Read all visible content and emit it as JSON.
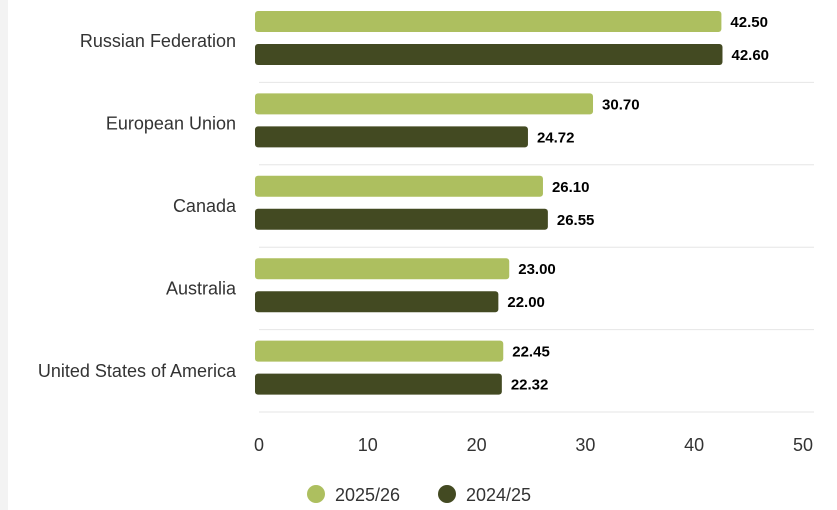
{
  "chart_data": {
    "type": "bar",
    "orientation": "horizontal",
    "categories": [
      "Russian Federation",
      "European Union",
      "Canada",
      "Australia",
      "United States of America"
    ],
    "series": [
      {
        "name": "2025/26",
        "color": "#adbf5f",
        "values": [
          42.5,
          30.7,
          26.1,
          23.0,
          22.45
        ],
        "labels": [
          "42.50",
          "30.70",
          "26.10",
          "23.00",
          "22.45"
        ]
      },
      {
        "name": "2024/25",
        "color": "#434a22",
        "values": [
          42.6,
          24.72,
          26.55,
          22.0,
          22.32
        ],
        "labels": [
          "42.60",
          "24.72",
          "26.55",
          "22.00",
          "22.32"
        ]
      }
    ],
    "xlim": [
      0,
      50
    ],
    "xticks": [
      "0",
      "10",
      "20",
      "30",
      "40",
      "50"
    ],
    "grid": "category separators",
    "legend": "bottom-center"
  }
}
